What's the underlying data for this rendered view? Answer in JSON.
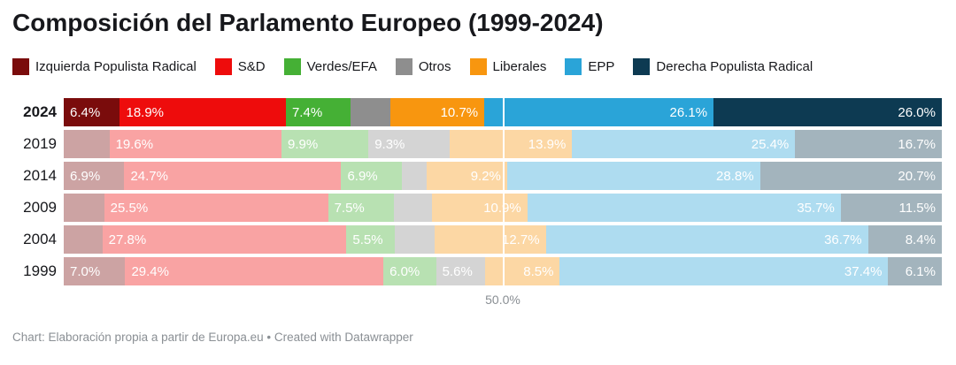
{
  "chart_data": {
    "type": "bar",
    "stacked": true,
    "orientation": "horizontal",
    "title": "Composición del Parlamento Europeo (1999-2024)",
    "xlabel": "",
    "ylabel": "",
    "xlim": [
      0,
      100
    ],
    "legend_position": "top",
    "grid": "single-line-50",
    "gridline": {
      "value": 50,
      "label": "50.0%"
    },
    "categories": [
      "2024",
      "2019",
      "2014",
      "2009",
      "2004",
      "1999"
    ],
    "highlight_category": "2024",
    "faded_opacity": 0.38,
    "series": [
      {
        "name": "Izquierda Populista Radical",
        "color": "#7a0c0c",
        "values": [
          6.4,
          5.2,
          6.9,
          4.6,
          4.4,
          7.0
        ],
        "labels": [
          "6.4%",
          null,
          "6.9%",
          null,
          null,
          "7.0%"
        ]
      },
      {
        "name": "S&D",
        "color": "#ee0c0c",
        "values": [
          18.9,
          19.6,
          24.7,
          25.5,
          27.8,
          29.4
        ],
        "labels": [
          "18.9%",
          "19.6%",
          "24.7%",
          "25.5%",
          "27.8%",
          "29.4%"
        ]
      },
      {
        "name": "Verdes/EFA",
        "color": "#45b035",
        "values": [
          7.4,
          9.9,
          6.9,
          7.5,
          5.5,
          6.0
        ],
        "labels": [
          "7.4%",
          "9.9%",
          "6.9%",
          "7.5%",
          "5.5%",
          "6.0%"
        ]
      },
      {
        "name": "Otros",
        "color": "#8e8e8e",
        "values": [
          4.5,
          9.3,
          2.8,
          4.3,
          4.5,
          5.6
        ],
        "labels": [
          null,
          "9.3%",
          null,
          null,
          null,
          "5.6%"
        ]
      },
      {
        "name": "Liberales",
        "color": "#f8960f",
        "values": [
          10.7,
          13.9,
          9.2,
          10.9,
          12.7,
          8.5
        ],
        "labels": [
          "10.7%",
          "13.9%",
          "9.2%",
          "10.9%",
          "12.7%",
          "8.5%"
        ]
      },
      {
        "name": "EPP",
        "color": "#2aa4d8",
        "values": [
          26.1,
          25.4,
          28.8,
          35.7,
          36.7,
          37.4
        ],
        "labels": [
          "26.1%",
          "25.4%",
          "28.8%",
          "35.7%",
          "36.7%",
          "37.4%"
        ]
      },
      {
        "name": "Derecha Populista Radical",
        "color": "#0d3a52",
        "values": [
          26.0,
          16.7,
          20.7,
          11.5,
          8.4,
          6.1
        ],
        "labels": [
          "26.0%",
          "16.7%",
          "20.7%",
          "11.5%",
          "8.4%",
          "6.1%"
        ]
      }
    ]
  },
  "footer": {
    "text": "Chart: Elaboración propia a partir de Europa.eu • Created with Datawrapper"
  }
}
